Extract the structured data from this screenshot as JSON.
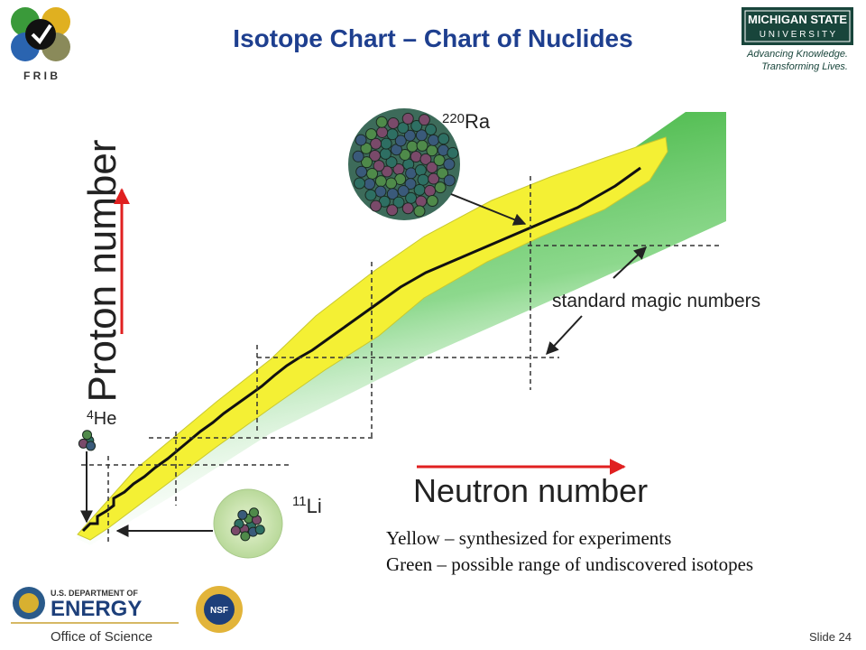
{
  "header": {
    "title": "Isotope Chart – Chart of Nuclides",
    "frib": "F R I B",
    "msu": {
      "line1": "MICHIGAN STATE",
      "line2": "U N I V E R S I T Y",
      "tagline1": "Advancing Knowledge.",
      "tagline2": "Transforming Lives."
    }
  },
  "figure": {
    "y_axis_label": "Proton number",
    "x_axis_label": "Neutron number",
    "magic_label": "standard magic numbers",
    "nuclei": [
      {
        "mass": "220",
        "symbol": "Ra"
      },
      {
        "mass": "4",
        "symbol": "He"
      },
      {
        "mass": "11",
        "symbol": "Li"
      }
    ]
  },
  "legend": [
    "Yellow – synthesized for experiments",
    "Green – possible range of undiscovered isotopes"
  ],
  "footer": {
    "doe": {
      "line1": "U.S. DEPARTMENT OF",
      "line2": "ENERGY",
      "line3": "Office of Science"
    },
    "nsf": "NSF",
    "slide": "Slide 24"
  }
}
